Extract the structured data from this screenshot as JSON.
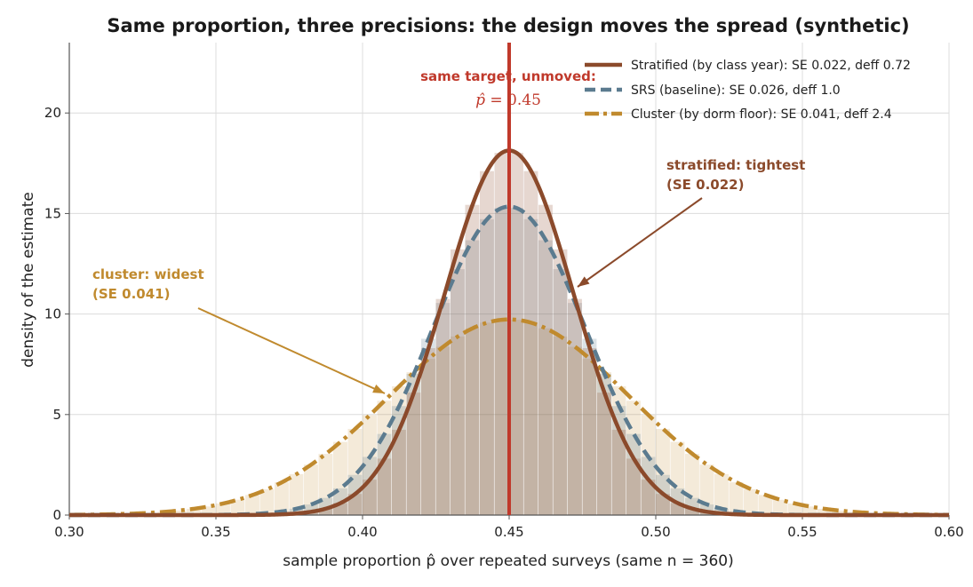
{
  "chart_data": {
    "type": "line",
    "title": "Same proportion, three precisions: the design moves the spread (synthetic)",
    "xlabel": "sample proportion p̂ over repeated surveys (same n = 360)",
    "ylabel": "density of the estimate",
    "xlim": [
      0.3,
      0.6
    ],
    "ylim": [
      0,
      23.5
    ],
    "x_ticks": [
      "0.30",
      "0.35",
      "0.40",
      "0.45",
      "0.50",
      "0.55",
      "0.60"
    ],
    "y_ticks": [
      "0",
      "5",
      "10",
      "15",
      "20"
    ],
    "grid": true,
    "legend_position": "top-right",
    "target_p": 0.45,
    "series": [
      {
        "name": "Stratified (by class year): SE 0.022, deff 0.72",
        "mean": 0.45,
        "se": 0.022,
        "color": "#8b4a2b",
        "style": "solid"
      },
      {
        "name": "SRS (baseline): SE 0.026, deff 1.0",
        "mean": 0.45,
        "se": 0.026,
        "color": "#5b7b8f",
        "style": "dashed"
      },
      {
        "name": "Cluster (by dorm floor): SE 0.041, deff 2.4",
        "mean": 0.45,
        "se": 0.041,
        "color": "#c08a2e",
        "style": "dashdot"
      }
    ],
    "target_color": "#c0392b",
    "annotations": {
      "target_line1": "same target, unmoved:",
      "target_line2_lhs": "p̂",
      "target_line2_rhs": "= 0.45",
      "stratified_line1": "stratified: tightest",
      "stratified_line2": "(SE 0.022)",
      "cluster_line1": "cluster: widest",
      "cluster_line2": "(SE 0.041)"
    }
  }
}
